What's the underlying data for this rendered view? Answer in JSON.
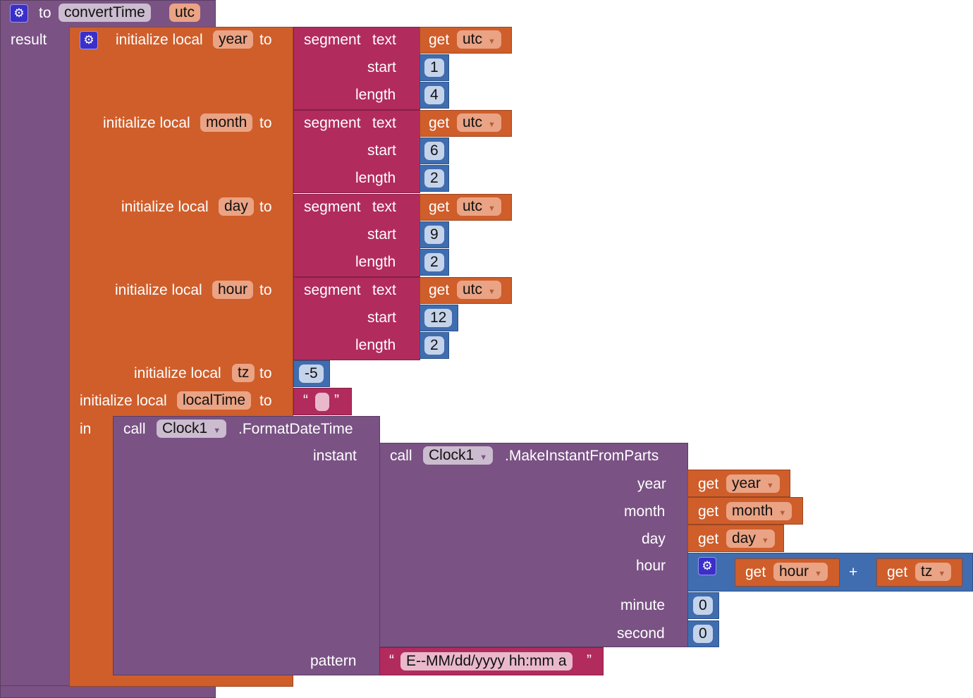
{
  "procedure": {
    "to": "to",
    "name": "convertTime",
    "param": "utc",
    "result": "result",
    "in": "in"
  },
  "inits": [
    {
      "label": "initialize local",
      "var": "year",
      "to": "to",
      "text": "text",
      "segment": "segment",
      "get": "get",
      "src": "utc",
      "start_label": "start",
      "start": "1",
      "length_label": "length",
      "length": "4"
    },
    {
      "label": "initialize local",
      "var": "month",
      "to": "to",
      "text": "text",
      "segment": "segment",
      "get": "get",
      "src": "utc",
      "start_label": "start",
      "start": "6",
      "length_label": "length",
      "length": "2"
    },
    {
      "label": "initialize local",
      "var": "day",
      "to": "to",
      "text": "text",
      "segment": "segment",
      "get": "get",
      "src": "utc",
      "start_label": "start",
      "start": "9",
      "length_label": "length",
      "length": "2"
    },
    {
      "label": "initialize local",
      "var": "hour",
      "to": "to",
      "text": "text",
      "segment": "segment",
      "get": "get",
      "src": "utc",
      "start_label": "start",
      "start": "12",
      "length_label": "length",
      "length": "2"
    }
  ],
  "tz": {
    "label": "initialize local",
    "var": "tz",
    "to": "to",
    "value": "-5"
  },
  "localTime": {
    "label": "initialize local",
    "var": "localTime",
    "to": "to",
    "open_quote": "“",
    "close_quote": "”"
  },
  "format": {
    "call": "call",
    "component": "Clock1",
    "method": ".FormatDateTime",
    "instant": "instant",
    "pattern_label": "pattern",
    "pattern": "E--MM/dd/yyyy hh:mm a"
  },
  "make": {
    "call": "call",
    "component": "Clock1",
    "method": ".MakeInstantFromParts",
    "year": "year",
    "month": "month",
    "day": "day",
    "hour": "hour",
    "minute": "minute",
    "second": "second",
    "get": "get",
    "minute_value": "0",
    "second_value": "0",
    "plus": "+",
    "tz": "tz"
  },
  "colors": {
    "procedure": "#7a5284",
    "variable": "#cf5e2b",
    "text": "#b22b5d",
    "math": "#3f6db0"
  }
}
